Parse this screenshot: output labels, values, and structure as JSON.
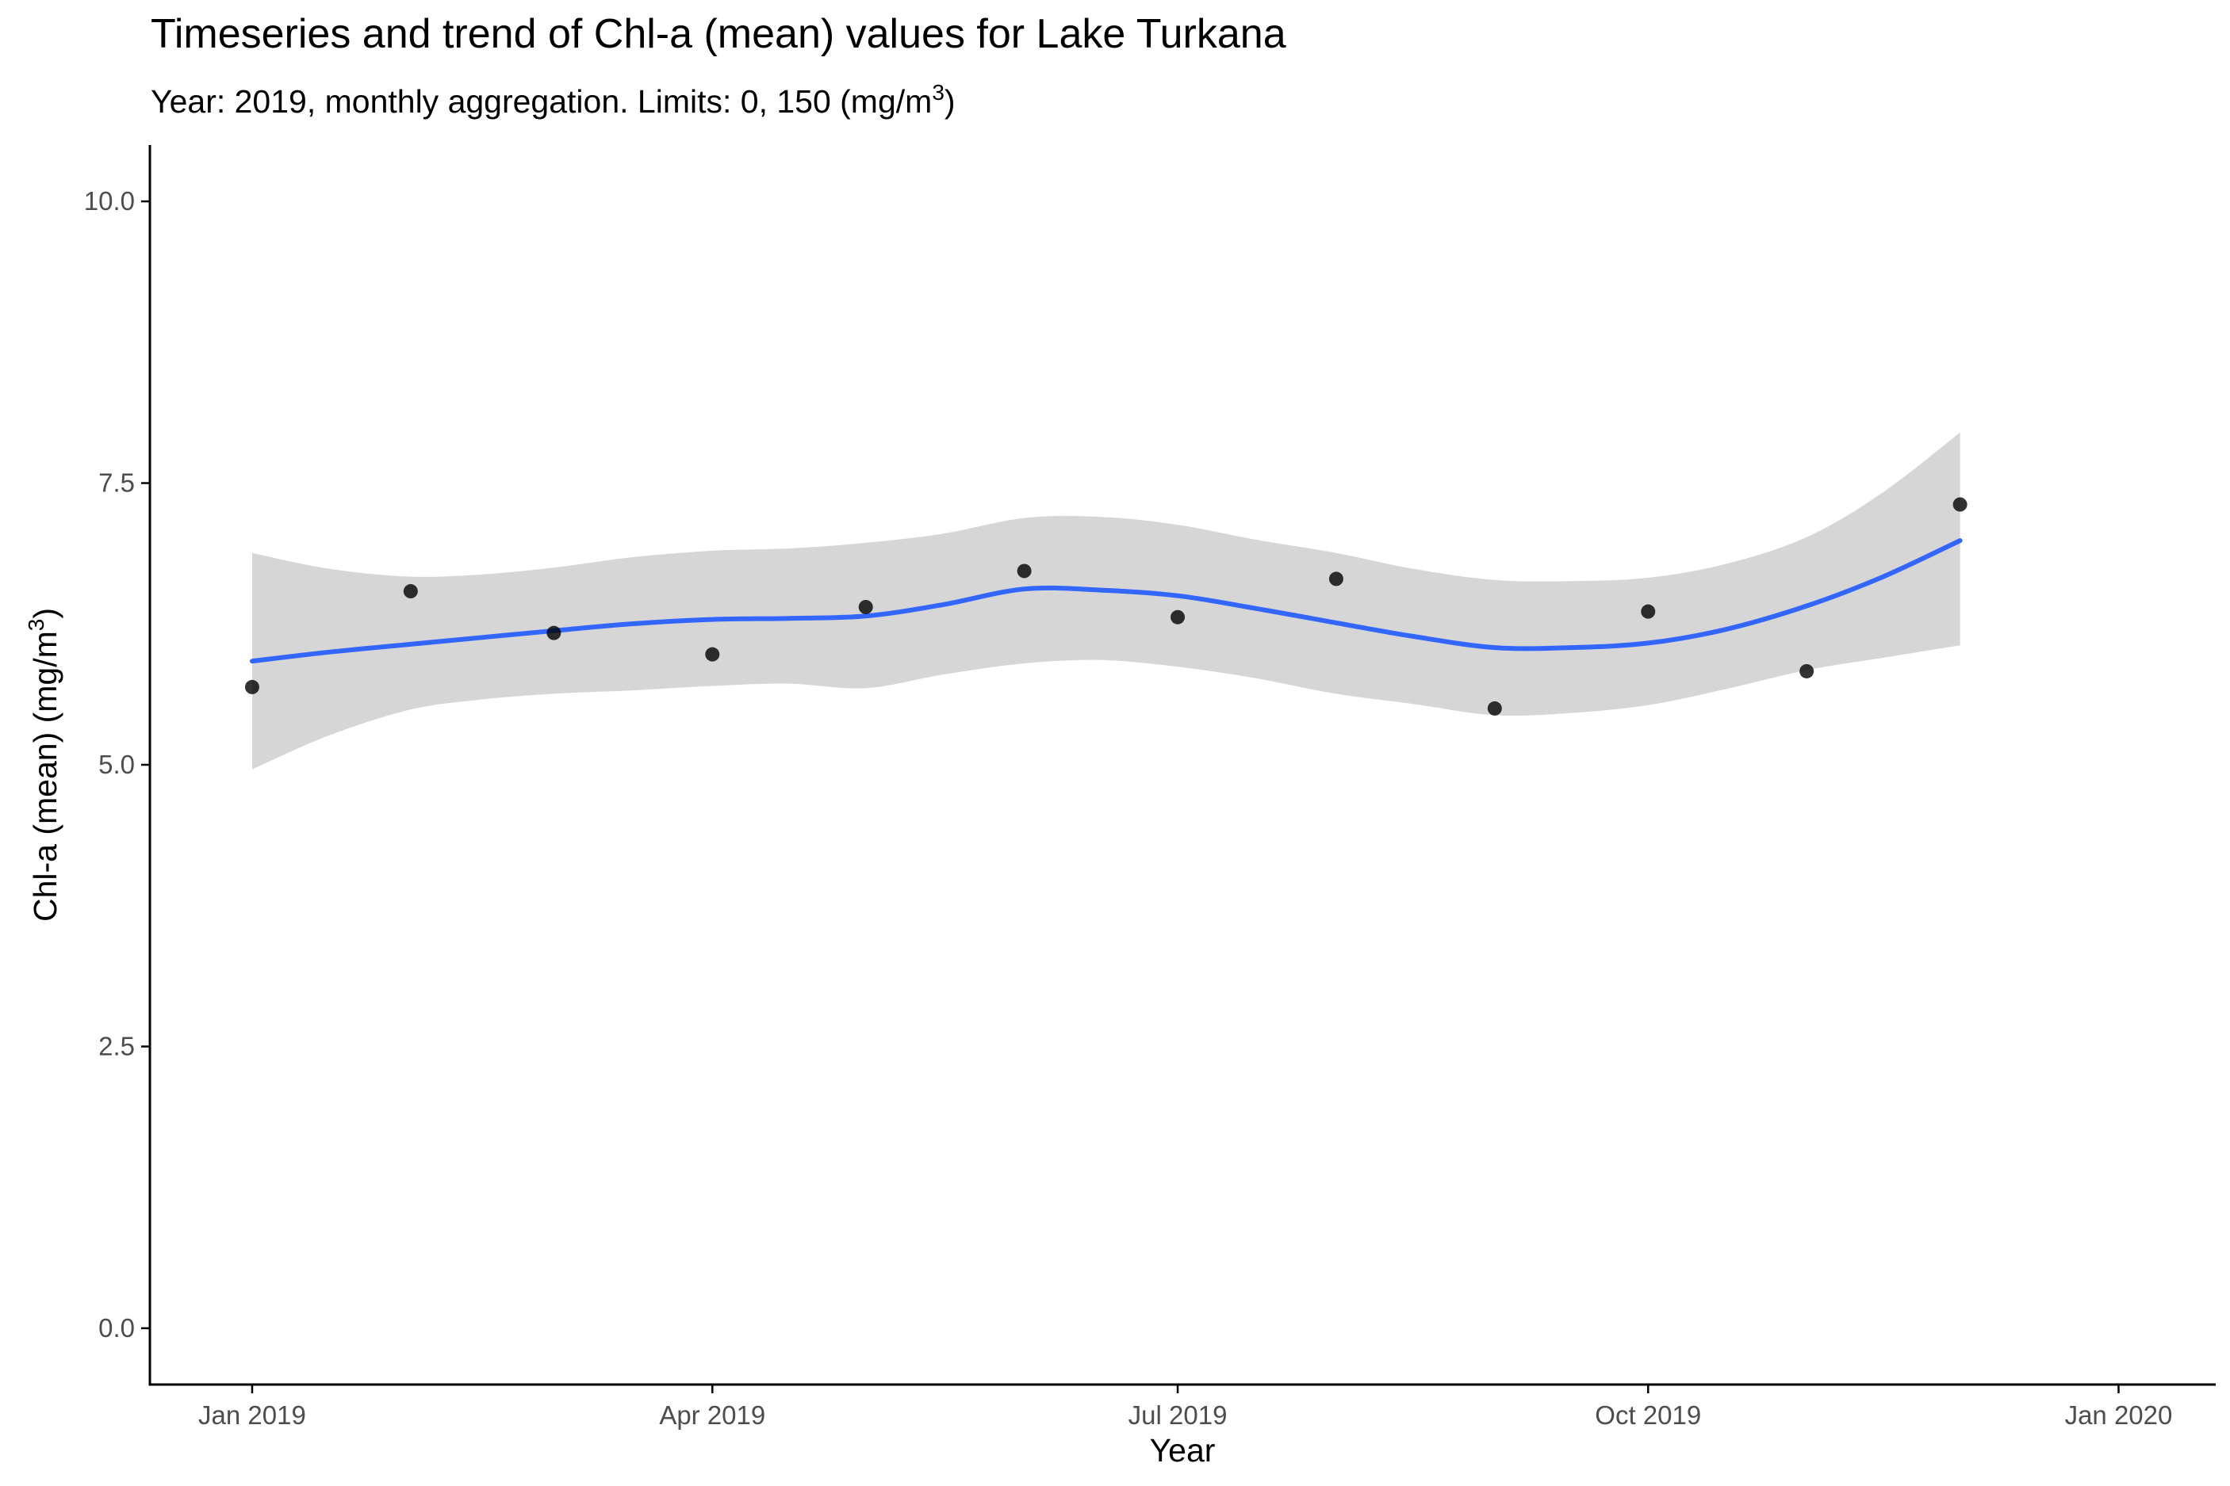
{
  "chart_data": {
    "type": "line",
    "title": "Timeseries and trend of Chl-a (mean) values for Lake Turkana",
    "subtitle": "Year: 2019, monthly aggregation. Limits: 0, 150 ",
    "subtitle_unit": {
      "open": "(mg/m",
      "sup": "3",
      "close": ")"
    },
    "xlabel": "Year",
    "ylabel": {
      "prefix": "Chl-a (mean) (mg/m",
      "sup": "3",
      "close": ")"
    },
    "xlim": [
      "2018-12-12",
      "2020-01-20"
    ],
    "ylim": [
      -0.5,
      10.5
    ],
    "x_ticks": [
      {
        "date": "2019-01-01",
        "label": "Jan 2019"
      },
      {
        "date": "2019-04-01",
        "label": "Apr 2019"
      },
      {
        "date": "2019-07-01",
        "label": "Jul 2019"
      },
      {
        "date": "2019-10-01",
        "label": "Oct 2019"
      },
      {
        "date": "2020-01-01",
        "label": "Jan 2020"
      }
    ],
    "y_ticks": [
      {
        "value": 0,
        "label": "0.0"
      },
      {
        "value": 2.5,
        "label": "2.5"
      },
      {
        "value": 5,
        "label": "5.0"
      },
      {
        "value": 7.5,
        "label": "7.5"
      },
      {
        "value": 10,
        "label": "10.0"
      }
    ],
    "grid": false,
    "legend": "none",
    "points": [
      {
        "x": "2019-01-01",
        "y": 5.69
      },
      {
        "x": "2019-02-01",
        "y": 6.54
      },
      {
        "x": "2019-03-01",
        "y": 6.17
      },
      {
        "x": "2019-04-01",
        "y": 5.98
      },
      {
        "x": "2019-05-01",
        "y": 6.4
      },
      {
        "x": "2019-06-01",
        "y": 6.72
      },
      {
        "x": "2019-07-01",
        "y": 6.31
      },
      {
        "x": "2019-08-01",
        "y": 6.65
      },
      {
        "x": "2019-09-01",
        "y": 5.5
      },
      {
        "x": "2019-10-01",
        "y": 6.36
      },
      {
        "x": "2019-11-01",
        "y": 5.83
      },
      {
        "x": "2019-12-01",
        "y": 7.31
      }
    ],
    "trend": [
      {
        "x": "2019-01-01",
        "y": 5.92,
        "lower": 4.96,
        "upper": 6.88
      },
      {
        "x": "2019-01-16",
        "y": 6.0,
        "lower": 5.26,
        "upper": 6.74
      },
      {
        "x": "2019-02-01",
        "y": 6.07,
        "lower": 5.49,
        "upper": 6.67
      },
      {
        "x": "2019-02-15",
        "y": 6.13,
        "lower": 5.58,
        "upper": 6.69
      },
      {
        "x": "2019-03-01",
        "y": 6.19,
        "lower": 5.63,
        "upper": 6.75
      },
      {
        "x": "2019-03-16",
        "y": 6.25,
        "lower": 5.66,
        "upper": 6.84
      },
      {
        "x": "2019-04-01",
        "y": 6.29,
        "lower": 5.7,
        "upper": 6.9
      },
      {
        "x": "2019-04-16",
        "y": 6.3,
        "lower": 5.72,
        "upper": 6.92
      },
      {
        "x": "2019-05-01",
        "y": 6.32,
        "lower": 5.68,
        "upper": 6.97
      },
      {
        "x": "2019-05-16",
        "y": 6.42,
        "lower": 5.8,
        "upper": 7.05
      },
      {
        "x": "2019-06-01",
        "y": 6.56,
        "lower": 5.9,
        "upper": 7.19
      },
      {
        "x": "2019-06-16",
        "y": 6.55,
        "lower": 5.93,
        "upper": 7.2
      },
      {
        "x": "2019-07-01",
        "y": 6.5,
        "lower": 5.87,
        "upper": 7.13
      },
      {
        "x": "2019-07-16",
        "y": 6.39,
        "lower": 5.77,
        "upper": 7.0
      },
      {
        "x": "2019-08-01",
        "y": 6.26,
        "lower": 5.63,
        "upper": 6.88
      },
      {
        "x": "2019-08-16",
        "y": 6.14,
        "lower": 5.54,
        "upper": 6.74
      },
      {
        "x": "2019-09-01",
        "y": 6.04,
        "lower": 5.44,
        "upper": 6.64
      },
      {
        "x": "2019-09-16",
        "y": 6.04,
        "lower": 5.46,
        "upper": 6.63
      },
      {
        "x": "2019-10-01",
        "y": 6.08,
        "lower": 5.53,
        "upper": 6.66
      },
      {
        "x": "2019-10-16",
        "y": 6.2,
        "lower": 5.67,
        "upper": 6.78
      },
      {
        "x": "2019-11-01",
        "y": 6.41,
        "lower": 5.84,
        "upper": 7.02
      },
      {
        "x": "2019-11-16",
        "y": 6.67,
        "lower": 5.95,
        "upper": 7.42
      },
      {
        "x": "2019-12-01",
        "y": 6.99,
        "lower": 6.06,
        "upper": 7.95
      }
    ],
    "colors": {
      "trend_line": "#3366FF",
      "ribbon": "#d6d6d6",
      "points": "#000000",
      "axis": "#000000",
      "tick_label": "#4d4d4d"
    }
  }
}
